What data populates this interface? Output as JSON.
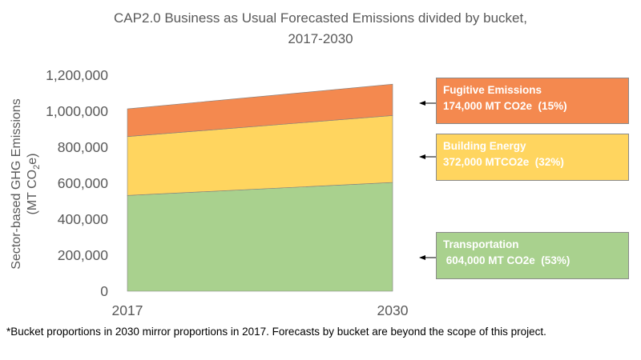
{
  "chart_data": {
    "type": "area",
    "stacked": true,
    "title": [
      "CAP2.0 Business as Usual Forecasted Emissions divided by bucket,",
      "2017-2030"
    ],
    "ylabel": [
      "Sector-based GHG Emissions",
      "(MT CO",
      "2",
      "e)"
    ],
    "x": [
      "2017",
      "2030"
    ],
    "ylim": [
      0,
      1200000
    ],
    "yticks": [
      "0",
      "200,000",
      "400,000",
      "600,000",
      "800,000",
      "1,000,000",
      "1,200,000"
    ],
    "series": [
      {
        "name": "Transportation",
        "values": [
          532000,
          604000
        ],
        "color": "#A9D18E"
      },
      {
        "name": "Building Energy",
        "values": [
          327000,
          372000
        ],
        "color": "#FFD55F"
      },
      {
        "name": "Fugitive Emissions",
        "values": [
          154000,
          174000
        ],
        "color": "#F4894F"
      }
    ],
    "annotations": [
      {
        "name": "Fugitive Emissions",
        "line1": "Fugitive Emissions",
        "line2": "174,000 MT CO2e  (15%)",
        "color": "#F4894F"
      },
      {
        "name": "Building Energy",
        "line1": "Building Energy",
        "line2": "372,000 MTCO2e  (32%)",
        "color": "#FFD55F"
      },
      {
        "name": "Transportation",
        "line1": "Transportation",
        "line2": " 604,000 MT CO2e  (53%)",
        "color": "#A9D18E"
      }
    ]
  },
  "footnote": "*Bucket proportions in 2030 mirror proportions in 2017.  Forecasts by bucket are beyond the scope of this project."
}
